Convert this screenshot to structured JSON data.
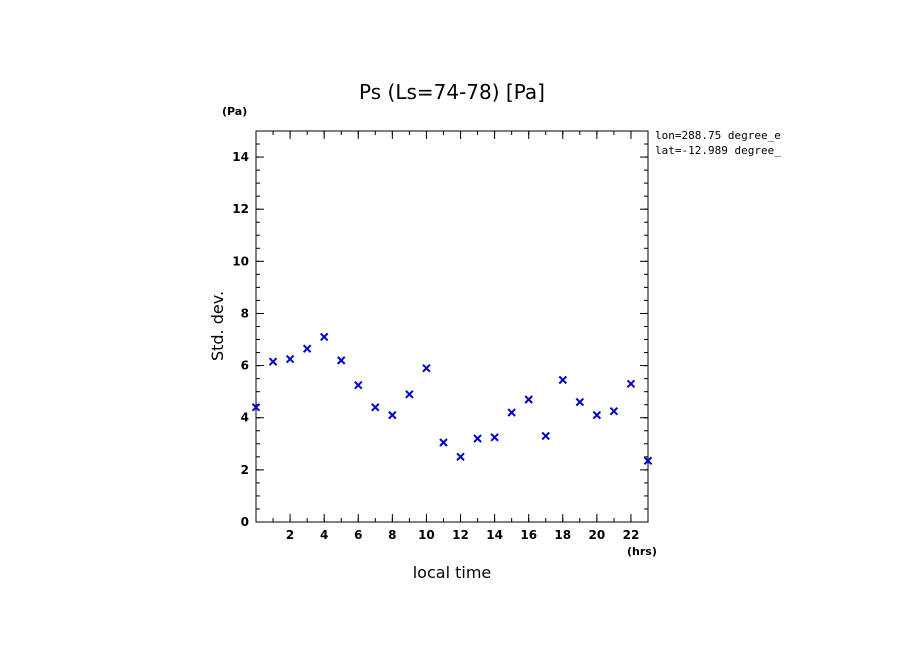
{
  "chart_data": {
    "type": "scatter",
    "title": "Ps (Ls=74-78) [Pa]",
    "xlabel": "local time",
    "ylabel": "Std. dev.",
    "x_unit": "(hrs)",
    "y_unit": "(Pa)",
    "annotations": [
      "lon=288.75 degree_e",
      "lat=-12.989 degree_"
    ],
    "xlim": [
      0,
      23
    ],
    "ylim": [
      0,
      15
    ],
    "x_ticks": [
      2,
      4,
      6,
      8,
      10,
      12,
      14,
      16,
      18,
      20,
      22
    ],
    "y_ticks": [
      0,
      2,
      4,
      6,
      8,
      10,
      12,
      14
    ],
    "marker": "x",
    "grid": false,
    "color": "#0000cc",
    "x": [
      0,
      1,
      2,
      3,
      4,
      5,
      6,
      7,
      8,
      9,
      10,
      11,
      12,
      13,
      14,
      15,
      16,
      17,
      18,
      19,
      20,
      21,
      22,
      23
    ],
    "y": [
      4.4,
      6.15,
      6.25,
      6.65,
      7.1,
      6.2,
      5.25,
      4.4,
      4.1,
      4.9,
      5.9,
      3.05,
      2.5,
      3.2,
      3.25,
      4.2,
      4.7,
      3.3,
      5.45,
      4.6,
      4.1,
      4.25,
      5.3,
      2.35
    ]
  }
}
